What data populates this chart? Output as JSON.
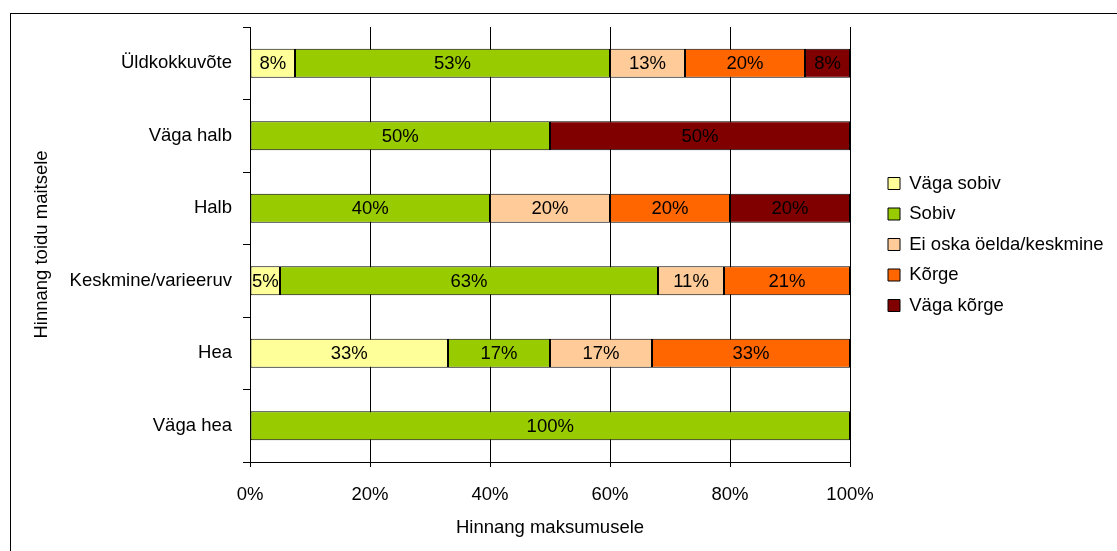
{
  "chart_data": {
    "type": "bar",
    "orientation": "horizontal",
    "stacked": true,
    "xlabel": "Hinnang maksumusele",
    "ylabel": "Hinnang toidu maitsele",
    "categories": [
      "Üldkokkuvõte",
      "Väga halb",
      "Halb",
      "Keskmine/varieeruv",
      "Hea",
      "Väga hea"
    ],
    "series": [
      {
        "name": "Väga sobiv",
        "color": "#ffff99",
        "values": [
          7.5,
          null,
          null,
          5,
          33,
          null
        ],
        "value_labels": [
          "8%",
          null,
          null,
          "5%",
          "33%",
          null
        ]
      },
      {
        "name": "Sobiv",
        "color": "#99cc00",
        "values": [
          52.5,
          50,
          40,
          63,
          17,
          100
        ],
        "value_labels": [
          "53%",
          "50%",
          "40%",
          "63%",
          "17%",
          "100%"
        ]
      },
      {
        "name": "Ei oska öelda/keskmine",
        "color": "#ffcc99",
        "values": [
          12.5,
          null,
          20,
          11,
          17,
          null
        ],
        "value_labels": [
          "13%",
          null,
          "20%",
          "11%",
          "17%",
          null
        ]
      },
      {
        "name": "Kõrge",
        "color": "#ff6600",
        "values": [
          20,
          null,
          20,
          21,
          33,
          null
        ],
        "value_labels": [
          "20%",
          null,
          "20%",
          "21%",
          "33%",
          null
        ]
      },
      {
        "name": "Väga kõrge",
        "color": "#800000",
        "values": [
          7.5,
          50,
          20,
          null,
          null,
          null
        ],
        "value_labels": [
          "8%",
          "50%",
          "20%",
          null,
          null,
          null
        ]
      }
    ],
    "xlim": [
      0,
      100
    ],
    "xticks": [
      {
        "value": 0,
        "label": "0%"
      },
      {
        "value": 20,
        "label": "20%"
      },
      {
        "value": 40,
        "label": "40%"
      },
      {
        "value": 60,
        "label": "60%"
      },
      {
        "value": 80,
        "label": "80%"
      },
      {
        "value": 100,
        "label": "100%"
      }
    ],
    "grid": "x",
    "legend": "right"
  }
}
